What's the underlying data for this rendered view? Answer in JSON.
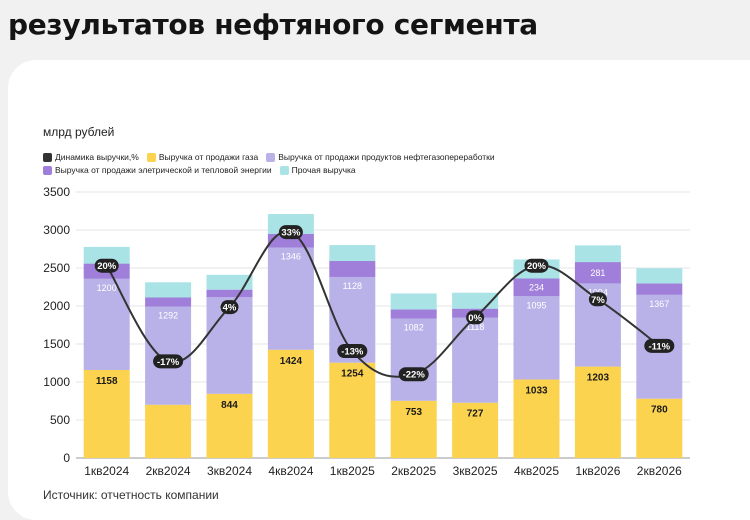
{
  "header": {
    "title_line_1": "",
    "title_line_2": "результатов нефтяного сегмента"
  },
  "source": "Источник: отчетность компании",
  "colors": {
    "gas": "#fcd34f",
    "processing": "#b9b2e8",
    "electric": "#9f7fd9",
    "other": "#a9e3e6",
    "line": "#333333"
  },
  "chart_data": {
    "type": "bar",
    "stacked": true,
    "unit_label": "млрд рублей",
    "categories": [
      "1кв2024",
      "2кв2024",
      "3кв2024",
      "4кв2024",
      "1кв2025",
      "2кв2025",
      "3кв2025",
      "4кв2025",
      "1кв2026",
      "2кв2026"
    ],
    "ylim": [
      0,
      3500
    ],
    "yticks": [
      0,
      500,
      1000,
      1500,
      2000,
      2500,
      3000,
      3500
    ],
    "grid": true,
    "legend_position": "top-left",
    "series": [
      {
        "name": "Выручка от продажи газа",
        "color_key": "gas",
        "values": [
          1158,
          700,
          844,
          1424,
          1254,
          753,
          727,
          1033,
          1203,
          780
        ],
        "labels": [
          "1158",
          "",
          "844",
          "1424",
          "1254",
          "753",
          "727",
          "1033",
          "1203",
          "780"
        ]
      },
      {
        "name": "Выручка от продажи продуктов нефтегазопереработки",
        "color_key": "processing",
        "values": [
          1200,
          1292,
          1271,
          1346,
          1128,
          1082,
          1118,
          1095,
          1094,
          1367
        ],
        "labels": [
          "1200",
          "1292",
          "1271",
          "1346",
          "1128",
          "1082",
          "1118",
          "1095",
          "1094",
          "1367"
        ]
      },
      {
        "name": "Выручка от продажи элетрической и тепловой энергии",
        "color_key": "electric",
        "values": [
          200,
          120,
          100,
          180,
          210,
          120,
          120,
          234,
          281,
          150
        ],
        "labels": [
          "",
          "",
          "",
          "",
          "",
          "",
          "",
          "234",
          "281",
          ""
        ]
      },
      {
        "name": "Прочая выручка",
        "color_key": "other",
        "values": [
          220,
          200,
          195,
          260,
          210,
          210,
          210,
          250,
          220,
          200
        ],
        "labels": [
          "",
          "",
          "",
          "",
          "",
          "",
          "",
          "",
          "",
          ""
        ]
      }
    ],
    "line_series": {
      "name": "Динамика выручки,%",
      "values": [
        20,
        -17,
        4,
        33,
        -13,
        -22,
        0,
        20,
        7,
        -11
      ],
      "labels": [
        "20%",
        "-17%",
        "4%",
        "33%",
        "-13%",
        "-22%",
        "0%",
        "20%",
        "7%",
        "-11%"
      ]
    },
    "legend_rows": [
      [
        {
          "label": "Динамика выручки,%",
          "color_key": "line"
        },
        {
          "label": "Выручка от продажи газа",
          "color_key": "gas"
        },
        {
          "label": "Выручка от продажи продуктов нефтегазопереработки",
          "color_key": "processing"
        }
      ],
      [
        {
          "label": "Выручка от продажи элетрической и тепловой энергии",
          "color_key": "electric"
        },
        {
          "label": "Прочая выручка",
          "color_key": "other"
        }
      ]
    ]
  }
}
